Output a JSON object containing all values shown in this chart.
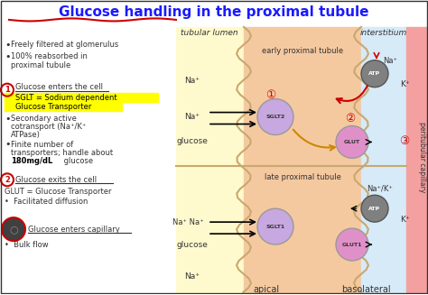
{
  "title": "Glucose handling in the proximal tubule",
  "title_color": "#1a1aff",
  "title_underline_color": "#cc0000",
  "bg_color": "#ffffff",
  "left_panel_bg": "#ffffff",
  "tubular_lumen_bg": "#fffacd",
  "cell_bg": "#f5c9a0",
  "interstitium_bg": "#d6eaf8",
  "capillary_bg": "#f4a0a0",
  "section1_header": "Glucose enters the cell",
  "section1_line1": "SGLT = Sodium dependent",
  "section1_line2": "Glucose Transporter",
  "section2_header": "Glucose exits the cell",
  "section2_line1": "GLUT = Glucose Transporter",
  "section2_bullet": "Facilitated diffusion",
  "section3_header": "Glucose enters capillary",
  "section3_bullet": "Bulk flow",
  "label_tubular_lumen": "tubular lumen",
  "label_interstitium": "interstitium",
  "label_early": "early proximal tubule",
  "label_late": "late proximal tubule",
  "label_apical": "apical",
  "label_basolateral": "basolateral",
  "label_peritubular": "peritubular capillary",
  "sglt_color": "#c8a8e0",
  "glut_color": "#e090c8",
  "atp_color": "#808080",
  "highlight_yellow": "#ffff00",
  "red_arrow_color": "#cc0000",
  "na_label": "Na⁺",
  "k_label": "K⁺",
  "glucose_label": "glucose"
}
